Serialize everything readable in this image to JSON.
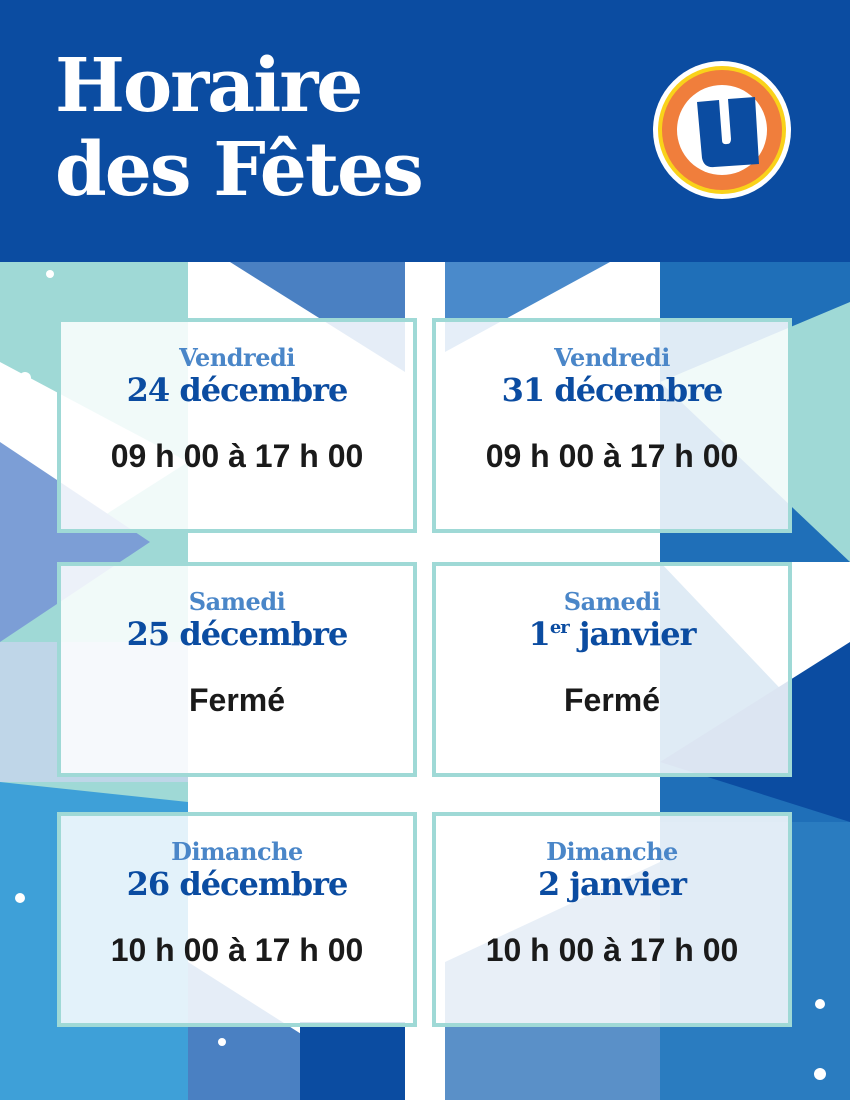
{
  "header": {
    "title_line1": "Horaire",
    "title_line2": "des Fêtes",
    "logo_letter": "U"
  },
  "colors": {
    "brand_blue": "#0b4ca1",
    "logo_orange": "#f07e3c",
    "logo_yellow": "#f9d21a",
    "card_border": "#9fd9d6",
    "day_color": "#4a86c8"
  },
  "schedule": [
    {
      "day": "Vendredi",
      "date": "24 décembre",
      "date_suffix": "",
      "date_rest": "",
      "hours": "09 h 00 à 17 h 00"
    },
    {
      "day": "Vendredi",
      "date": "31 décembre",
      "date_suffix": "",
      "date_rest": "",
      "hours": "09 h 00 à 17 h 00"
    },
    {
      "day": "Samedi",
      "date": "25 décembre",
      "date_suffix": "",
      "date_rest": "",
      "hours": "Fermé"
    },
    {
      "day": "Samedi",
      "date": "1",
      "date_suffix": "er",
      "date_rest": " janvier",
      "hours": "Fermé"
    },
    {
      "day": "Dimanche",
      "date": "26 décembre",
      "date_suffix": "",
      "date_rest": "",
      "hours": "10 h 00 à 17 h 00"
    },
    {
      "day": "Dimanche",
      "date": "2 janvier",
      "date_suffix": "",
      "date_rest": "",
      "hours": "10 h 00 à 17 h 00"
    }
  ]
}
